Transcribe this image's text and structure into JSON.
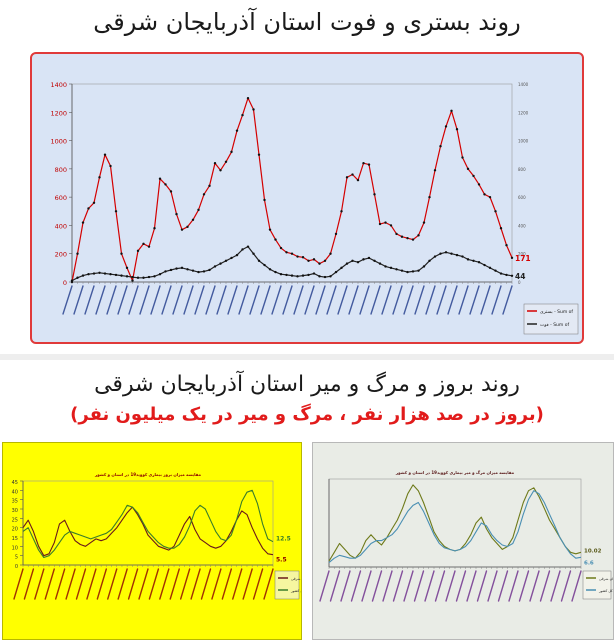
{
  "titles": {
    "top": "روند بستری و فوت استان آذربایجان شرقی",
    "bottom": "روند بروز و مرگ و میر استان آذربایجان شرقی",
    "bottom_sub": "(بروز در صد هزار نفر ، مرگ و میر در یک میلیون نفر)"
  },
  "colors": {
    "hosp": "#d40000",
    "death": "#222222",
    "incidence_left": "#6b1a1a",
    "mortality_left": "#3a7d2a",
    "incidence_right": "#6e7a1a",
    "mortality_right": "#4a8fb3",
    "panel_top_bg": "#d9e4f5",
    "panel_left_bg": "#ffff00",
    "panel_right_bg": "#e9ece6"
  },
  "chart_data": [
    {
      "type": "line",
      "title": "",
      "y_ticks": [
        0,
        200,
        400,
        600,
        800,
        1000,
        1200,
        1400
      ],
      "ylim": [
        0,
        1400
      ],
      "right_ticks": [
        0,
        200,
        400,
        600,
        800,
        1000,
        1200,
        1400
      ],
      "grid": false,
      "legend_position": "right",
      "series": [
        {
          "name": "بستری - Sum of",
          "values": [
            0,
            200,
            420,
            520,
            560,
            740,
            900,
            820,
            500,
            200,
            100,
            10,
            220,
            270,
            250,
            380,
            730,
            690,
            640,
            480,
            370,
            390,
            440,
            510,
            620,
            680,
            840,
            790,
            850,
            920,
            1070,
            1180,
            1300,
            1220,
            900,
            580,
            370,
            300,
            240,
            210,
            200,
            180,
            175,
            150,
            160,
            130,
            150,
            200,
            340,
            500,
            740,
            760,
            720,
            840,
            830,
            620,
            410,
            420,
            400,
            340,
            320,
            310,
            300,
            330,
            420,
            600,
            790,
            960,
            1100,
            1210,
            1080,
            880,
            800,
            750,
            690,
            620,
            600,
            500,
            380,
            260,
            171
          ],
          "end_label": "171"
        },
        {
          "name": "فوت - Sum of",
          "values": [
            10,
            30,
            45,
            55,
            60,
            65,
            60,
            55,
            50,
            45,
            40,
            35,
            30,
            30,
            35,
            40,
            55,
            75,
            85,
            95,
            100,
            90,
            80,
            70,
            75,
            85,
            110,
            130,
            150,
            170,
            190,
            230,
            250,
            200,
            150,
            120,
            90,
            70,
            55,
            50,
            45,
            40,
            45,
            50,
            60,
            40,
            35,
            40,
            70,
            100,
            130,
            150,
            140,
            160,
            170,
            150,
            130,
            110,
            100,
            90,
            80,
            70,
            75,
            80,
            110,
            150,
            180,
            200,
            210,
            200,
            190,
            180,
            160,
            150,
            140,
            120,
            100,
            80,
            60,
            50,
            44
          ],
          "end_label": "44"
        }
      ]
    },
    {
      "type": "line",
      "title": "مقایسه میزان بروز بیماری کووید19 در استان و کشور",
      "y_ticks": [
        0,
        5,
        10,
        15,
        20,
        25,
        30,
        35,
        40,
        45
      ],
      "ylim": [
        0,
        45
      ],
      "legend_position": "right",
      "series": [
        {
          "name": "آذربایجان شرقی",
          "values": [
            20,
            24,
            18,
            10,
            5,
            6,
            12,
            22,
            24,
            18,
            13,
            11,
            10,
            12,
            14,
            13,
            14,
            17,
            20,
            24,
            28,
            31,
            27,
            22,
            16,
            13,
            10,
            9,
            8,
            10,
            16,
            22,
            26,
            19,
            14,
            12,
            10,
            9,
            10,
            13,
            18,
            24,
            29,
            27,
            20,
            14,
            9,
            6,
            5.5
          ],
          "end_label": "5.5"
        },
        {
          "name": "کل کشور",
          "values": [
            18,
            20,
            14,
            8,
            4,
            5,
            8,
            12,
            16,
            18,
            17,
            16,
            15,
            14,
            15,
            16,
            17,
            19,
            23,
            27,
            32,
            31,
            28,
            23,
            18,
            15,
            12,
            10,
            9,
            9,
            11,
            15,
            21,
            29,
            32,
            30,
            24,
            18,
            14,
            13,
            16,
            24,
            34,
            39,
            40,
            33,
            22,
            14,
            12.5
          ],
          "end_label": "12.5"
        }
      ]
    },
    {
      "type": "line",
      "title": "مقایسه میزان مرگ و میر بیماری کووید19 در استان و کشور",
      "ylim": [
        0,
        60
      ],
      "legend_position": "right",
      "series": [
        {
          "name": "آذربایجان شرقی",
          "values": [
            4,
            10,
            16,
            12,
            8,
            6,
            10,
            18,
            22,
            18,
            15,
            20,
            26,
            32,
            40,
            50,
            56,
            52,
            44,
            34,
            24,
            18,
            14,
            12,
            11,
            12,
            16,
            22,
            30,
            34,
            26,
            20,
            16,
            12,
            14,
            20,
            32,
            44,
            52,
            54,
            48,
            40,
            32,
            26,
            20,
            14,
            10,
            9,
            10.02
          ],
          "end_label": "10.02"
        },
        {
          "name": "کل کشور",
          "values": [
            3,
            6,
            8,
            7,
            6,
            6,
            8,
            12,
            16,
            18,
            18,
            20,
            22,
            26,
            32,
            38,
            42,
            44,
            38,
            30,
            22,
            16,
            13,
            12,
            11,
            12,
            14,
            18,
            24,
            30,
            28,
            22,
            18,
            15,
            14,
            16,
            24,
            36,
            46,
            52,
            50,
            44,
            36,
            28,
            20,
            14,
            9,
            6,
            6.6
          ],
          "end_label": "6.6"
        }
      ]
    }
  ]
}
